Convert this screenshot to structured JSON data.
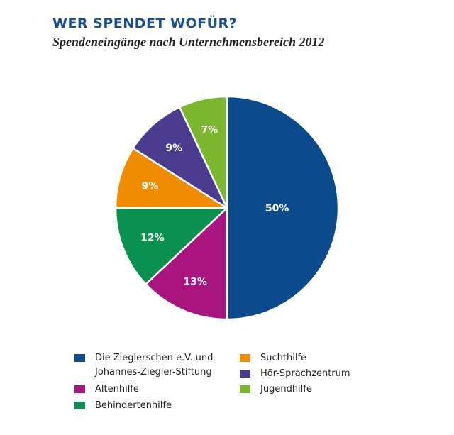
{
  "title": "WER SPENDET WOFÜR?",
  "subtitle": "Spendeneingänge nach Unternehmensbereich 2012",
  "chart_data": {
    "type": "pie",
    "title": "WER SPENDET WOFÜR?",
    "subtitle": "Spendeneingänge nach Unternehmensbereich 2012",
    "slices": [
      {
        "label": "Die Zieglerschen e.V. und Johannes-Ziegler-Stiftung",
        "value": 50,
        "value_label": "50%",
        "color": "#0b4a8c"
      },
      {
        "label": "Altenhilfe",
        "value": 13,
        "value_label": "13%",
        "color": "#a8157f"
      },
      {
        "label": "Behindertenhilfe",
        "value": 12,
        "value_label": "12%",
        "color": "#0a9150"
      },
      {
        "label": "Suchthilfe",
        "value": 9,
        "value_label": "9%",
        "color": "#ef8c00"
      },
      {
        "label": "Hör-Sprachzentrum",
        "value": 9,
        "value_label": "9%",
        "color": "#4a3b8f"
      },
      {
        "label": "Jugendhilfe",
        "value": 7,
        "value_label": "7%",
        "color": "#7ab72e"
      }
    ],
    "legend_placement": "bottom"
  },
  "legend": {
    "left": [
      {
        "lines": [
          "Die Zieglerschen e.V. und",
          "Johannes-Ziegler-Stiftung"
        ],
        "color": "#0b4a8c",
        "icon": "swatch"
      },
      {
        "lines": [
          "Altenhilfe"
        ],
        "color": "#a8157f",
        "icon": "swatch"
      },
      {
        "lines": [
          "Behindertenhilfe"
        ],
        "color": "#0a9150",
        "icon": "swatch"
      }
    ],
    "right": [
      {
        "lines": [
          "Suchthilfe"
        ],
        "color": "#ef8c00",
        "icon": "swatch"
      },
      {
        "lines": [
          "Hör-Sprachzentrum"
        ],
        "color": "#4a3b8f",
        "icon": "swatch"
      },
      {
        "lines": [
          "Jugendhilfe"
        ],
        "color": "#7ab72e",
        "icon": "swatch"
      }
    ]
  }
}
